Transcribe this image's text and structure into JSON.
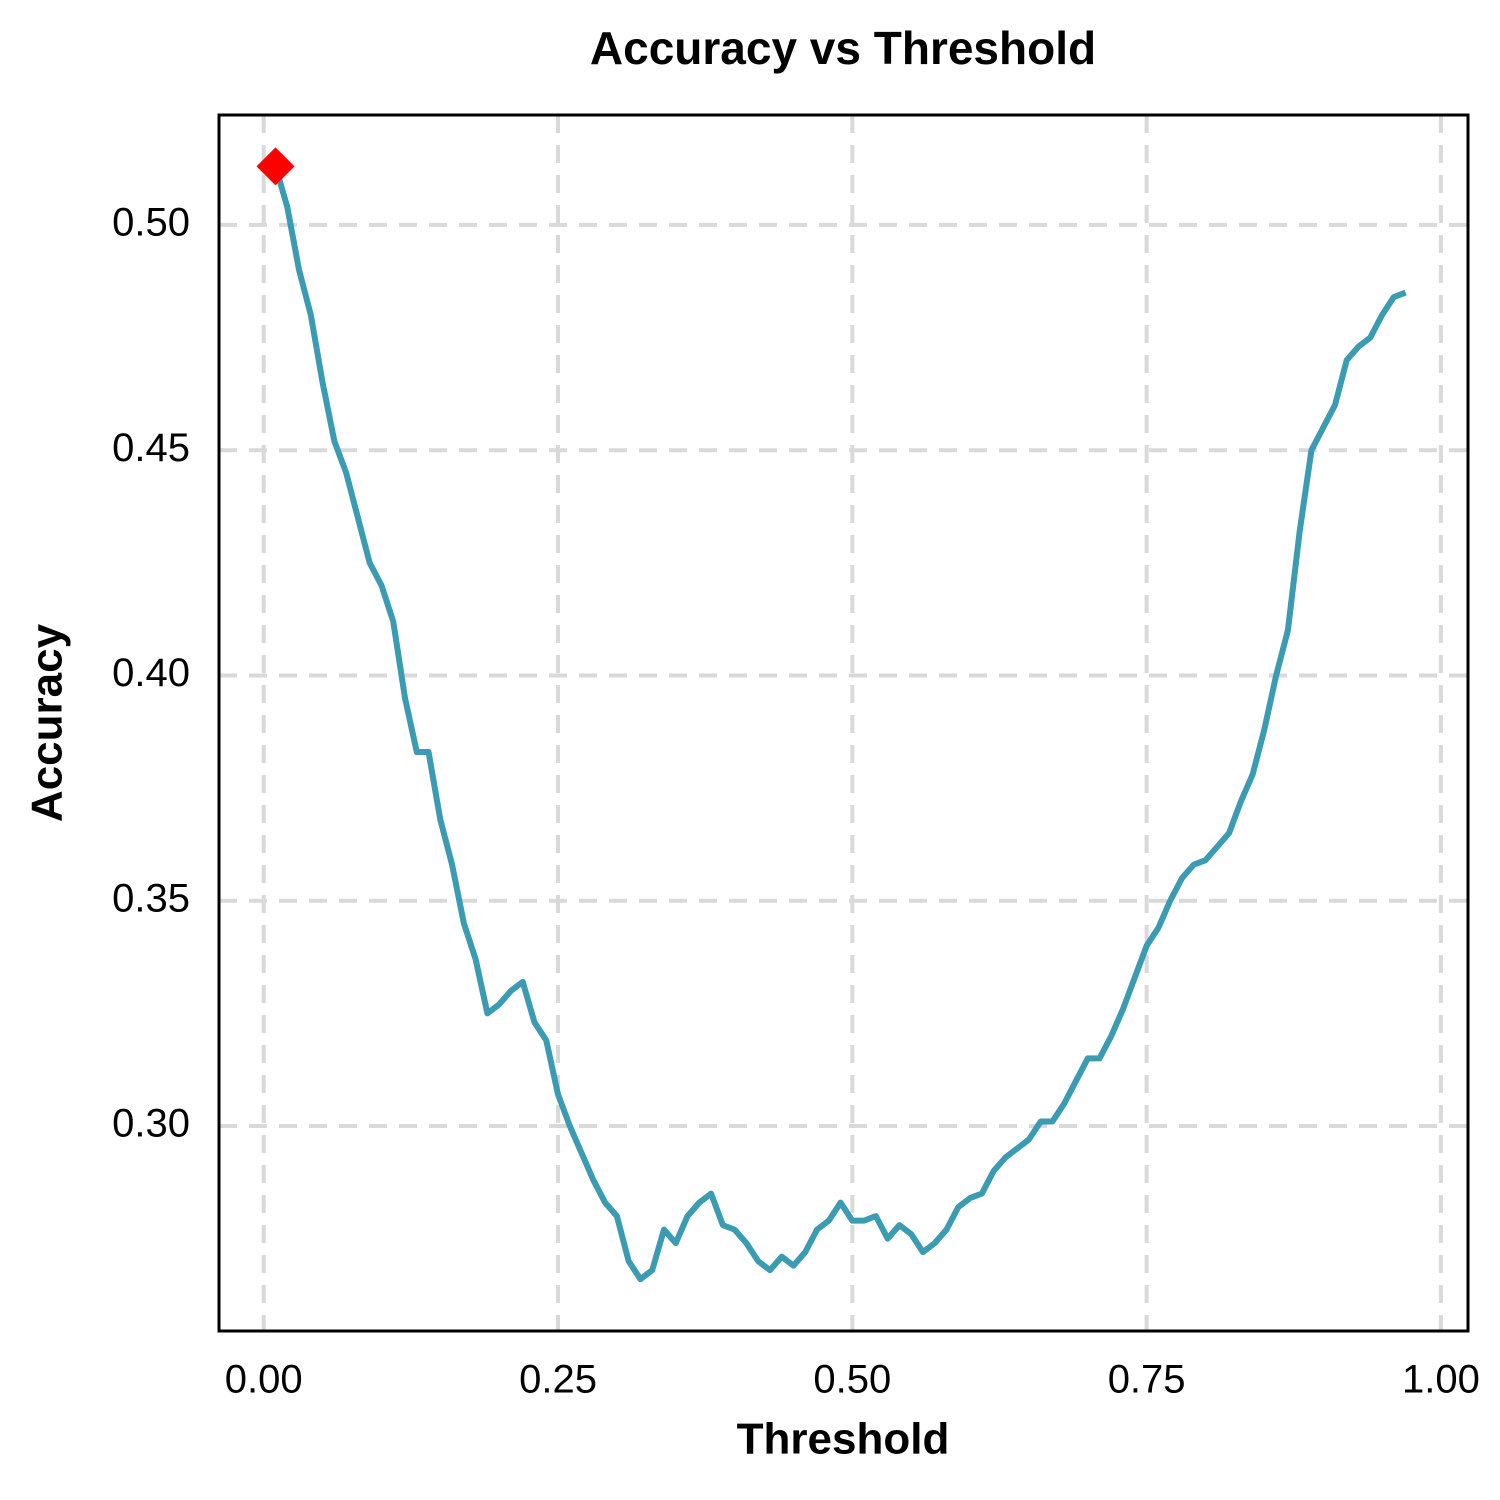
{
  "chart_data": {
    "type": "line",
    "title": "Accuracy vs Threshold",
    "x_label": "Threshold",
    "y_label": "Accuracy",
    "x": [
      0.01,
      0.02,
      0.03,
      0.04,
      0.05,
      0.06,
      0.07,
      0.08,
      0.09,
      0.1,
      0.11,
      0.12,
      0.13,
      0.14,
      0.15,
      0.16,
      0.17,
      0.18,
      0.19,
      0.2,
      0.21,
      0.22,
      0.23,
      0.24,
      0.25,
      0.26,
      0.27,
      0.28,
      0.29,
      0.3,
      0.31,
      0.32,
      0.33,
      0.34,
      0.35,
      0.36,
      0.37,
      0.38,
      0.39,
      0.4,
      0.41,
      0.42,
      0.43,
      0.44,
      0.45,
      0.46,
      0.47,
      0.48,
      0.49,
      0.5,
      0.51,
      0.52,
      0.53,
      0.54,
      0.55,
      0.56,
      0.57,
      0.58,
      0.59,
      0.6,
      0.61,
      0.62,
      0.63,
      0.64,
      0.65,
      0.66,
      0.67,
      0.68,
      0.69,
      0.7,
      0.71,
      0.72,
      0.73,
      0.74,
      0.75,
      0.76,
      0.77,
      0.78,
      0.79,
      0.8,
      0.81,
      0.82,
      0.83,
      0.84,
      0.85,
      0.86,
      0.87,
      0.88,
      0.89,
      0.9,
      0.91,
      0.92,
      0.93,
      0.94,
      0.95,
      0.96,
      0.97
    ],
    "series": [
      {
        "color": "#3a9bb2",
        "values": [
          0.513,
          0.504,
          0.49,
          0.48,
          0.465,
          0.452,
          0.445,
          0.435,
          0.425,
          0.42,
          0.412,
          0.395,
          0.383,
          0.383,
          0.368,
          0.358,
          0.345,
          0.337,
          0.325,
          0.327,
          0.33,
          0.332,
          0.323,
          0.319,
          0.307,
          0.3,
          0.294,
          0.288,
          0.283,
          0.28,
          0.27,
          0.266,
          0.268,
          0.277,
          0.274,
          0.28,
          0.283,
          0.285,
          0.278,
          0.277,
          0.274,
          0.27,
          0.268,
          0.271,
          0.269,
          0.272,
          0.277,
          0.279,
          0.283,
          0.279,
          0.279,
          0.28,
          0.275,
          0.278,
          0.276,
          0.272,
          0.274,
          0.277,
          0.282,
          0.284,
          0.285,
          0.29,
          0.293,
          0.295,
          0.297,
          0.301,
          0.301,
          0.305,
          0.31,
          0.315,
          0.315,
          0.32,
          0.326,
          0.333,
          0.34,
          0.344,
          0.35,
          0.355,
          0.358,
          0.359,
          0.362,
          0.365,
          0.372,
          0.378,
          0.388,
          0.4,
          0.41,
          0.432,
          0.45,
          0.455,
          0.46,
          0.47,
          0.473,
          0.475,
          0.48,
          0.484,
          0.485
        ]
      }
    ],
    "marker": {
      "x": 0.01,
      "y": 0.513,
      "color": "#ff0000"
    },
    "xlim": [
      -0.038,
      1.023
    ],
    "ylim": [
      0.2545,
      0.5244
    ],
    "xticks": [
      {
        "value": 0,
        "label": "0.00"
      },
      {
        "value": 0.25,
        "label": "0.25"
      },
      {
        "value": 0.5,
        "label": "0.50"
      },
      {
        "value": 0.75,
        "label": "0.75"
      },
      {
        "value": 1,
        "label": "1.00"
      }
    ],
    "yticks": [
      {
        "value": 0.3,
        "label": "0.30"
      },
      {
        "value": 0.35,
        "label": "0.35"
      },
      {
        "value": 0.4,
        "label": "0.40"
      },
      {
        "value": 0.45,
        "label": "0.45"
      },
      {
        "value": 0.5,
        "label": "0.50"
      }
    ],
    "grid": true
  }
}
